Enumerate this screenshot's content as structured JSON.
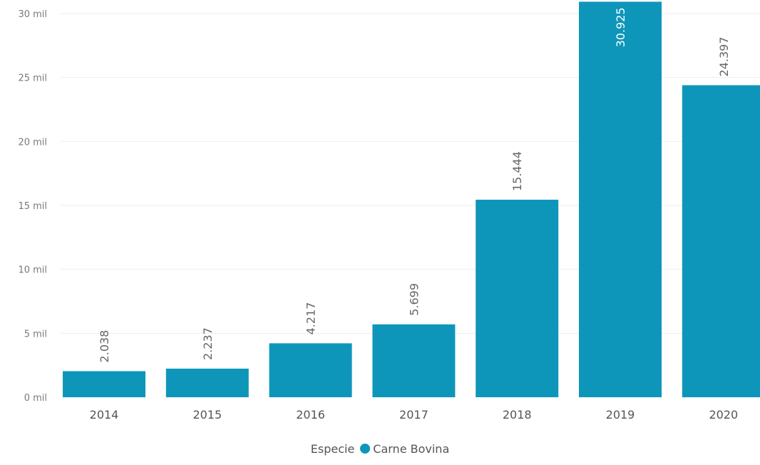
{
  "chart_data": {
    "type": "bar",
    "categories": [
      "2014",
      "2015",
      "2016",
      "2017",
      "2018",
      "2019",
      "2020"
    ],
    "series": [
      {
        "name": "Carne Bovina",
        "values": [
          2038,
          2237,
          4217,
          5699,
          15444,
          30925,
          24397
        ],
        "labels": [
          "2.038",
          "2.237",
          "4.217",
          "5.699",
          "15.444",
          "30.925",
          "24.397"
        ]
      }
    ],
    "y_ticks": [
      {
        "value": 0,
        "label": "0 mil"
      },
      {
        "value": 5000,
        "label": "5 mil"
      },
      {
        "value": 10000,
        "label": "10 mil"
      },
      {
        "value": 15000,
        "label": "15 mil"
      },
      {
        "value": 20000,
        "label": "20 mil"
      },
      {
        "value": 25000,
        "label": "25 mil"
      },
      {
        "value": 30000,
        "label": "30 mil"
      }
    ],
    "ylim": [
      0,
      31000
    ],
    "grid": true,
    "legend": {
      "title": "Especie",
      "position": "bottom-center"
    },
    "colors": {
      "bar": "#0e96ba"
    }
  }
}
